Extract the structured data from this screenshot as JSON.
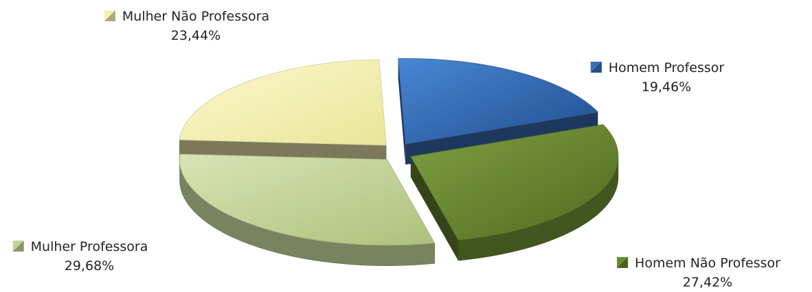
{
  "chart_data": {
    "type": "pie",
    "title": "",
    "slices": [
      {
        "name": "Homem Professor",
        "value": 19.46,
        "label": "19,46%",
        "color": "#3a6fb8"
      },
      {
        "name": "Homem Não Professor",
        "value": 27.42,
        "label": "27,42%",
        "color": "#6b8a32"
      },
      {
        "name": "Mulher Professora",
        "value": 29.68,
        "label": "29,68%",
        "color": "#c4d49a"
      },
      {
        "name": "Mulher Não Professora",
        "value": 23.44,
        "label": "23,44%",
        "color": "#f5f2b4"
      }
    ],
    "legend": "labels-outside-slices",
    "style": "3d-exploded"
  }
}
